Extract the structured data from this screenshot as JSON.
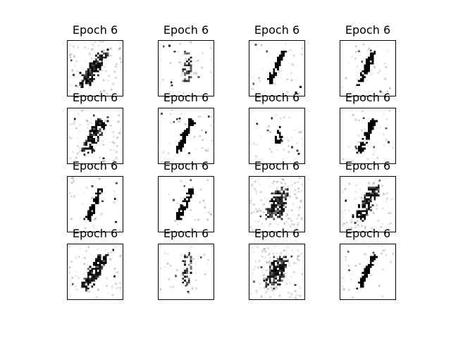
{
  "figure": {
    "panels": [
      {
        "title": "Epoch 6",
        "shape": "blob-slant"
      },
      {
        "title": "Epoch 6",
        "shape": "faint-squiggle"
      },
      {
        "title": "Epoch 6",
        "shape": "thin-slant"
      },
      {
        "title": "Epoch 6",
        "shape": "thin-slant"
      },
      {
        "title": "Epoch 6",
        "shape": "blob-slant"
      },
      {
        "title": "Epoch 6",
        "shape": "thin-slant"
      },
      {
        "title": "Epoch 6",
        "shape": "small-cluster"
      },
      {
        "title": "Epoch 6",
        "shape": "thin-slant"
      },
      {
        "title": "Epoch 6",
        "shape": "thin-slant"
      },
      {
        "title": "Epoch 6",
        "shape": "thin-slant"
      },
      {
        "title": "Epoch 6",
        "shape": "diffuse-blob"
      },
      {
        "title": "Epoch 6",
        "shape": "blob-slant"
      },
      {
        "title": "Epoch 6",
        "shape": "blob-slant"
      },
      {
        "title": "Epoch 6",
        "shape": "faint-squiggle"
      },
      {
        "title": "Epoch 6",
        "shape": "diffuse-blob"
      },
      {
        "title": "Epoch 6",
        "shape": "thin-slant"
      }
    ]
  }
}
